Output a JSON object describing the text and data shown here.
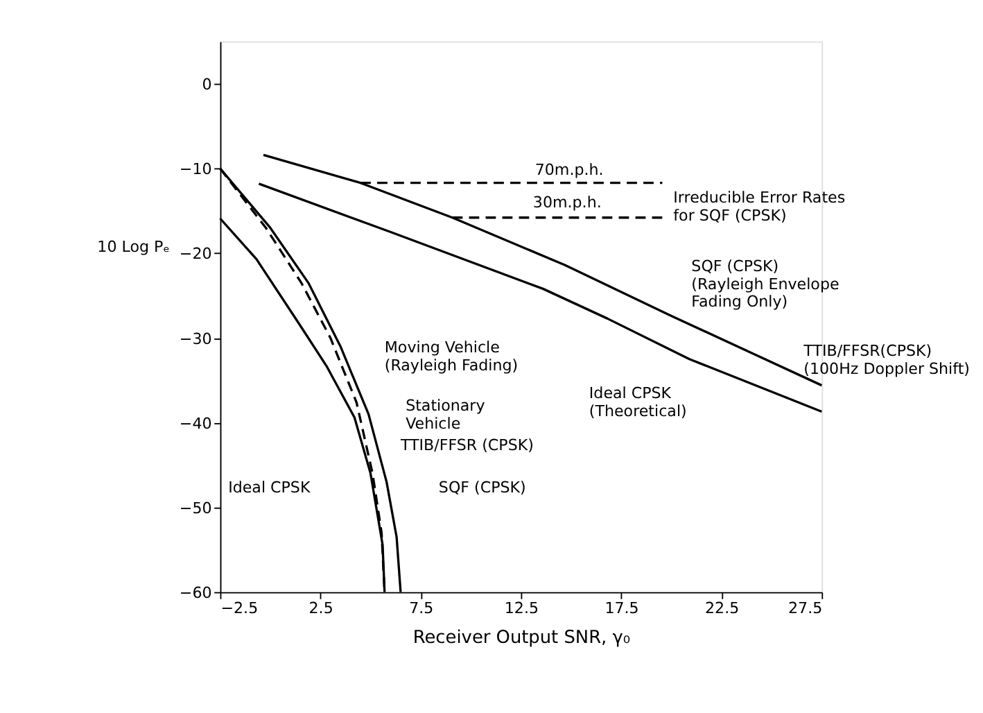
{
  "chart_data": {
    "type": "line",
    "xlabel": "Receiver Output SNR, γ₀",
    "ylabel": "10 Log Pₑ",
    "xlim": [
      -2.5,
      27.5
    ],
    "ylim": [
      -60,
      5
    ],
    "xticks": [
      -2.5,
      2.5,
      7.5,
      12.5,
      17.5,
      22.5,
      27.5
    ],
    "yticks": [
      0,
      -10,
      -20,
      -30,
      -40,
      -50,
      -60
    ],
    "grid": false,
    "marker": "none",
    "series": [
      {
        "color": "#000000",
        "line_style": "solid",
        "x": [
          -2.5,
          -0.69,
          1.4,
          2.8,
          4.2,
          5.0,
          5.6,
          5.7
        ],
        "values": [
          -15.9,
          -20.7,
          -28.2,
          -33.3,
          -39.4,
          -46,
          -54.4,
          -60
        ]
      },
      {
        "color": "#000000",
        "line_style": "dashed",
        "x": [
          -2.5,
          -0.22,
          1.55,
          3.0,
          4.3,
          5.1,
          5.55,
          5.7
        ],
        "values": [
          -10,
          -17,
          -23.5,
          -30,
          -37.6,
          -46,
          -53,
          -60
        ]
      },
      {
        "color": "#000000",
        "line_style": "solid",
        "x": [
          -2.5,
          0.0,
          1.9,
          3.5,
          4.9,
          5.8,
          6.3,
          6.5
        ],
        "values": [
          -10,
          -17,
          -23.5,
          -31,
          -39,
          -47,
          -53.5,
          -60
        ]
      },
      {
        "color": "#000000",
        "line_style": "solid",
        "x": [
          -0.34,
          4.5,
          9.08,
          14.7,
          20.0,
          27.5
        ],
        "values": [
          -8.4,
          -11.7,
          -15.8,
          -21.4,
          -27.4,
          -35.6
        ]
      },
      {
        "color": "#000000",
        "line_style": "solid",
        "x": [
          -0.57,
          6.0,
          13.6,
          16.8,
          20.9,
          27.5
        ],
        "values": [
          -11.8,
          -17.5,
          -24.2,
          -27.7,
          -32.5,
          -38.7
        ]
      },
      {
        "color": "#000000",
        "line_style": "dashed",
        "x": [
          4.5,
          19.55
        ],
        "values": [
          -11.7,
          -11.7
        ]
      },
      {
        "color": "#000000",
        "line_style": "dashed",
        "x": [
          9.08,
          19.55
        ],
        "values": [
          -15.8,
          -15.8
        ]
      }
    ],
    "annotations": [
      "70m.p.h.",
      "30m.p.h.",
      "Irreducible Error Rates\nfor SQF (CPSK)",
      "SQF (CPSK)\n(Rayleigh Envelope\nFading Only)",
      "TTIB/FFSR(CPSK)\n(100Hz Doppler Shift)",
      "Moving Vehicle\n(Rayleigh Fading)",
      "Ideal CPSK\n(Theoretical)",
      "Stationary\nVehicle",
      "TTIB/FFSR (CPSK)",
      "SQF (CPSK)",
      "Ideal CPSK"
    ]
  }
}
